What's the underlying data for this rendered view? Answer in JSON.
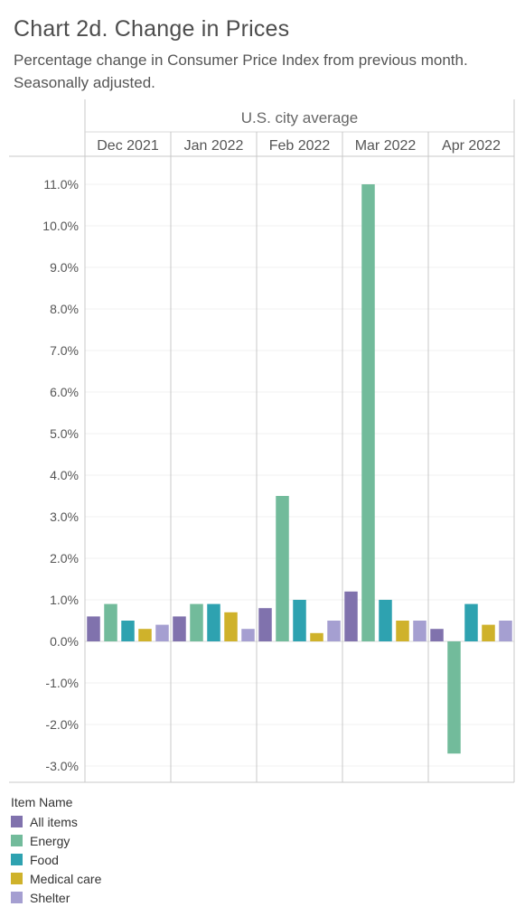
{
  "header": {
    "title": "Chart 2d. Change in Prices",
    "subtitle": "Percentage change in Consumer Price Index from previous month. Seasonally adjusted."
  },
  "legend": {
    "title": "Item Name",
    "items": [
      {
        "label": "All items",
        "color": "#8072ad"
      },
      {
        "label": "Energy",
        "color": "#72bb9b"
      },
      {
        "label": "Food",
        "color": "#2ea2b0"
      },
      {
        "label": "Medical care",
        "color": "#cfb22b"
      },
      {
        "label": "Shelter",
        "color": "#a59fd1"
      }
    ]
  },
  "chart_data": {
    "type": "bar",
    "title": "Chart 2d. Change in Prices",
    "subtitle": "Percentage change in Consumer Price Index from previous month. Seasonally adjusted.",
    "panel_header": "U.S. city average",
    "categories": [
      "Dec 2021",
      "Jan 2022",
      "Feb 2022",
      "Mar 2022",
      "Apr 2022"
    ],
    "series": [
      {
        "name": "All items",
        "color": "#8072ad",
        "values": [
          0.6,
          0.6,
          0.8,
          1.2,
          0.3
        ]
      },
      {
        "name": "Energy",
        "color": "#72bb9b",
        "values": [
          0.9,
          0.9,
          3.5,
          11.0,
          -2.7
        ]
      },
      {
        "name": "Food",
        "color": "#2ea2b0",
        "values": [
          0.5,
          0.9,
          1.0,
          1.0,
          0.9
        ]
      },
      {
        "name": "Medical care",
        "color": "#cfb22b",
        "values": [
          0.3,
          0.7,
          0.2,
          0.5,
          0.4
        ]
      },
      {
        "name": "Shelter",
        "color": "#a59fd1",
        "values": [
          0.4,
          0.3,
          0.5,
          0.5,
          0.5
        ]
      }
    ],
    "y_ticks": [
      11,
      10,
      9,
      8,
      7,
      6,
      5,
      4,
      3,
      2,
      1,
      0,
      -1,
      -2,
      -3
    ],
    "y_tick_labels": [
      "11.0%",
      "10.0%",
      "9.0%",
      "8.0%",
      "7.0%",
      "6.0%",
      "5.0%",
      "4.0%",
      "3.0%",
      "2.0%",
      "1.0%",
      "0.0%",
      "-1.0%",
      "-2.0%",
      "-3.0%"
    ],
    "ylim": [
      -3.4,
      11.5
    ],
    "grid": true,
    "legend_position": "bottom-left"
  }
}
